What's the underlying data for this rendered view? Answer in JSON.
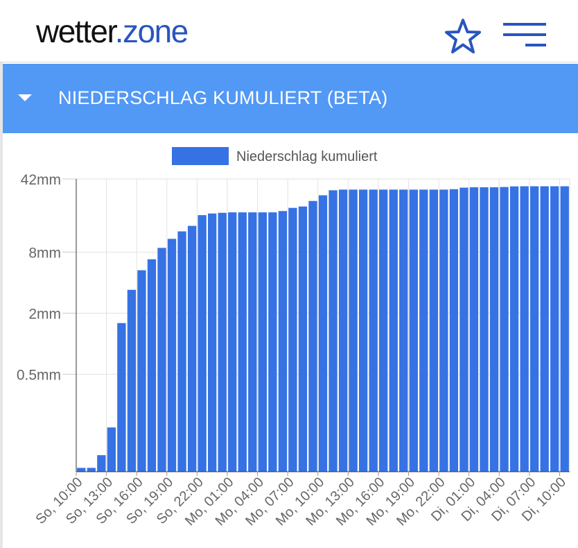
{
  "header": {
    "logo_main": "wetter",
    "logo_dot": ".",
    "logo_tail": "zone"
  },
  "banner": {
    "title": "NIEDERSCHLAG KUMULIERT (BETA)"
  },
  "colors": {
    "accent": "#5298f5",
    "bar": "#3672e4",
    "logo_blue": "#2a55c0"
  },
  "icons": {
    "favorite": "star-icon",
    "menu": "hamburger-icon",
    "collapse": "caret-down-icon"
  },
  "chart_data": {
    "type": "bar",
    "legend": "Niederschlag kumuliert",
    "legend_position": "top",
    "y_scale": "log",
    "y_ticks": [
      {
        "value": 0.5,
        "label": "0.5mm"
      },
      {
        "value": 2,
        "label": "2mm"
      },
      {
        "value": 8,
        "label": "8mm"
      },
      {
        "value": 42,
        "label": "42mm"
      }
    ],
    "ylim": [
      0.055,
      42
    ],
    "grid": true,
    "x_tick_labels": [
      "So, 10:00",
      "So, 13:00",
      "So, 16:00",
      "So, 19:00",
      "So, 22:00",
      "Mo, 01:00",
      "Mo, 04:00",
      "Mo, 07:00",
      "Mo, 10:00",
      "Mo, 13:00",
      "Mo, 16:00",
      "Mo, 19:00",
      "Mo, 22:00",
      "Di, 01:00",
      "Di, 04:00",
      "Di, 07:00",
      "Di, 10:00"
    ],
    "values": [
      0.06,
      0.06,
      0.08,
      0.15,
      1.6,
      3.4,
      5.3,
      6.8,
      8.8,
      10.8,
      12.8,
      14.5,
      18.5,
      19.2,
      19.5,
      19.7,
      19.7,
      19.7,
      19.7,
      19.7,
      20.3,
      21.8,
      22.5,
      25.5,
      29,
      32.5,
      33,
      33,
      33,
      33,
      33,
      33,
      33,
      33,
      33,
      33,
      33,
      33.3,
      34.5,
      34.8,
      34.8,
      34.8,
      35,
      35.5,
      35.6,
      35.6,
      35.6,
      35.6,
      35.6
    ]
  }
}
